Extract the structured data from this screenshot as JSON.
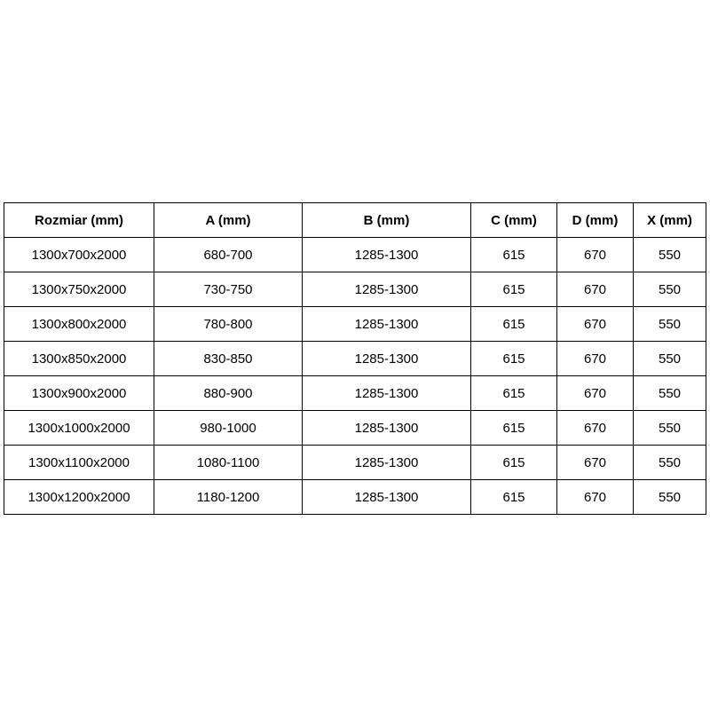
{
  "table": {
    "columns": [
      "Rozmiar (mm)",
      "A (mm)",
      "B (mm)",
      "C (mm)",
      "D (mm)",
      "X (mm)"
    ],
    "rows": [
      [
        "1300x700x2000",
        "680-700",
        "1285-1300",
        "615",
        "670",
        "550"
      ],
      [
        "1300x750x2000",
        "730-750",
        "1285-1300",
        "615",
        "670",
        "550"
      ],
      [
        "1300x800x2000",
        "780-800",
        "1285-1300",
        "615",
        "670",
        "550"
      ],
      [
        "1300x850x2000",
        "830-850",
        "1285-1300",
        "615",
        "670",
        "550"
      ],
      [
        "1300x900x2000",
        "880-900",
        "1285-1300",
        "615",
        "670",
        "550"
      ],
      [
        "1300x1000x2000",
        "980-1000",
        "1285-1300",
        "615",
        "670",
        "550"
      ],
      [
        "1300x1100x2000",
        "1080-1100",
        "1285-1300",
        "615",
        "670",
        "550"
      ],
      [
        "1300x1200x2000",
        "1180-1200",
        "1285-1300",
        "615",
        "670",
        "550"
      ]
    ]
  },
  "colors": {
    "border": "#000000",
    "text": "#000000",
    "background": "#ffffff"
  }
}
